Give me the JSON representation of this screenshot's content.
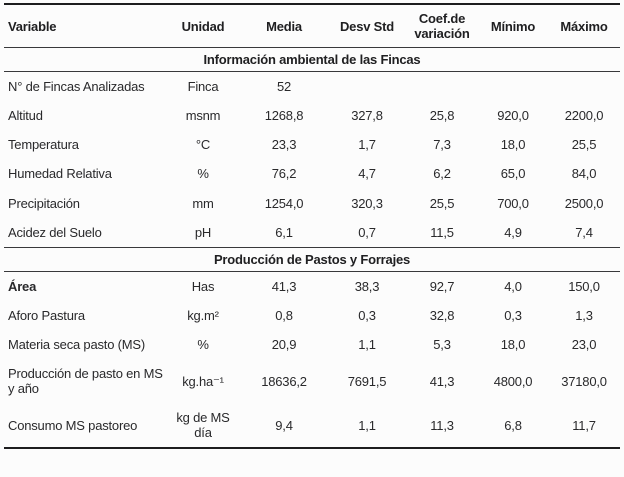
{
  "colors": {
    "text": "#29292b",
    "border_strong": "#1d1d1f",
    "border_light": "#39393b",
    "background": "#fcfcfc"
  },
  "table": {
    "header": {
      "columns": [
        {
          "label": "Variable"
        },
        {
          "label": "Unidad"
        },
        {
          "label": "Media"
        },
        {
          "label": "Desv Std"
        },
        {
          "label": "Coef.de\nvariación"
        },
        {
          "label": "Mínimo"
        },
        {
          "label": "Máximo"
        }
      ]
    },
    "sections": [
      {
        "title": "Información ambiental de las Fincas",
        "rows": [
          {
            "cells": [
              "N° de Fincas Analizadas",
              "Finca",
              "52",
              "",
              "",
              "",
              ""
            ]
          },
          {
            "cells": [
              "Altitud",
              "msnm",
              "1268,8",
              "327,8",
              "25,8",
              "920,0",
              "2200,0"
            ]
          },
          {
            "cells": [
              "Temperatura",
              "°C",
              "23,3",
              "1,7",
              "7,3",
              "18,0",
              "25,5"
            ]
          },
          {
            "cells": [
              "Humedad Relativa",
              "%",
              "76,2",
              "4,7",
              "6,2",
              "65,0",
              "84,0"
            ]
          },
          {
            "cells": [
              "Precipitación",
              "mm",
              "1254,0",
              "320,3",
              "25,5",
              "700,0",
              "2500,0"
            ]
          },
          {
            "cells": [
              "Acidez del Suelo",
              "pH",
              "6,1",
              "0,7",
              "11,5",
              "4,9",
              "7,4"
            ]
          }
        ]
      },
      {
        "title": "Producción de Pastos y Forrajes",
        "rows": [
          {
            "bold_label": true,
            "cells": [
              "Área",
              "Has",
              "41,3",
              "38,3",
              "92,7",
              "4,0",
              "150,0"
            ]
          },
          {
            "cells": [
              "Aforo Pastura",
              "kg.m²",
              "0,8",
              "0,3",
              "32,8",
              "0,3",
              "1,3"
            ]
          },
          {
            "cells": [
              "Materia seca pasto (MS)",
              "%",
              "20,9",
              "1,1",
              "5,3",
              "18,0",
              "23,0"
            ]
          },
          {
            "cells": [
              "Producción de pasto en MS y año",
              "kg.ha⁻¹",
              "18636,2",
              "7691,5",
              "41,3",
              "4800,0",
              "37180,0"
            ]
          },
          {
            "cells": [
              "Consumo MS pastoreo",
              "kg de MS día",
              "9,4",
              "1,1",
              "11,3",
              "6,8",
              "11,7"
            ]
          }
        ]
      }
    ]
  }
}
